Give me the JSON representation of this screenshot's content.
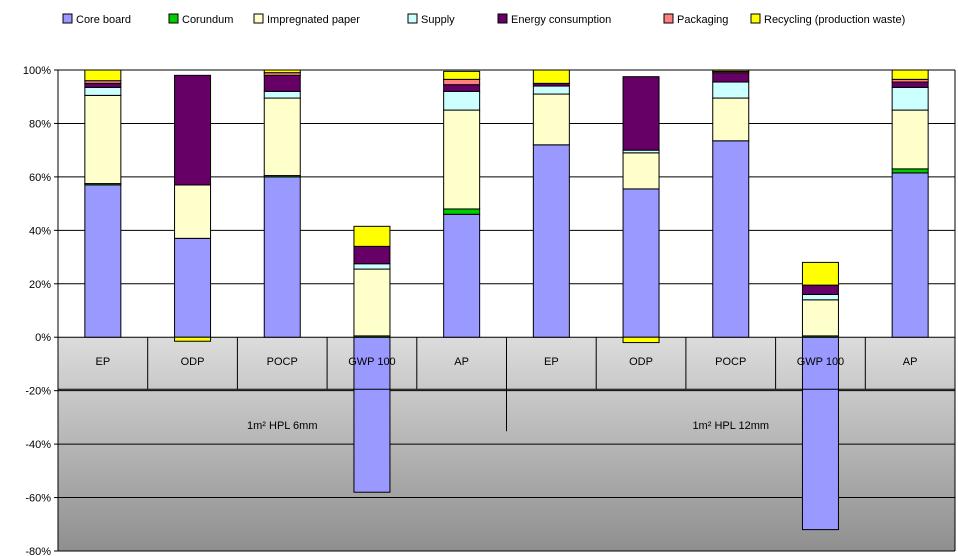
{
  "chart_data": {
    "type": "bar",
    "stacked": true,
    "title": "",
    "xlabel": "",
    "ylabel": "",
    "ylim": [
      -80,
      100
    ],
    "yticks": [
      -80,
      -60,
      -40,
      -20,
      0,
      20,
      40,
      60,
      80,
      100
    ],
    "ytick_labels": [
      "-80%",
      "-60%",
      "-40%",
      "-20%",
      "0%",
      "20%",
      "40%",
      "60%",
      "80%",
      "100%"
    ],
    "grid": true,
    "legend_position": "top",
    "categories": [
      "EP",
      "ODP",
      "POCP",
      "GWP 100",
      "AP",
      "EP",
      "ODP",
      "POCP",
      "GWP 100",
      "AP"
    ],
    "groups": [
      {
        "label": "1m² HPL 6mm",
        "categories": [
          "EP",
          "ODP",
          "POCP",
          "GWP 100",
          "AP"
        ]
      },
      {
        "label": "1m² HPL 12mm",
        "categories": [
          "EP",
          "ODP",
          "POCP",
          "GWP 100",
          "AP"
        ]
      }
    ],
    "series": [
      {
        "name": "Core board",
        "color": "#9999ff",
        "values": [
          57,
          37,
          60,
          -58,
          46,
          72,
          55.5,
          73.5,
          -72,
          61.5
        ]
      },
      {
        "name": "Corundum",
        "color": "#00cc00",
        "values": [
          0.5,
          0,
          0.5,
          0.5,
          2,
          0,
          0,
          0,
          0.5,
          1.5
        ]
      },
      {
        "name": "Impregnated paper",
        "color": "#ffffcc",
        "values": [
          33,
          20,
          29,
          25,
          37,
          19,
          13.5,
          16,
          13.5,
          22
        ]
      },
      {
        "name": "Supply",
        "color": "#ccffff",
        "values": [
          3,
          0,
          2.5,
          2,
          7,
          3,
          1,
          6,
          2,
          8.5
        ]
      },
      {
        "name": "Energy consumption",
        "color": "#660066",
        "values": [
          1.5,
          41,
          6,
          6.5,
          2.5,
          1,
          27.5,
          3.5,
          3.5,
          2
        ]
      },
      {
        "name": "Packaging",
        "color": "#ff8080",
        "values": [
          1,
          0,
          1,
          0,
          2,
          0,
          0,
          0.5,
          0,
          1
        ]
      },
      {
        "name": "Recycling (production waste)",
        "color": "#ffff00",
        "values": [
          4,
          -1.5,
          1,
          7.5,
          3,
          5,
          -2,
          0.5,
          8.5,
          3.5
        ]
      }
    ]
  }
}
